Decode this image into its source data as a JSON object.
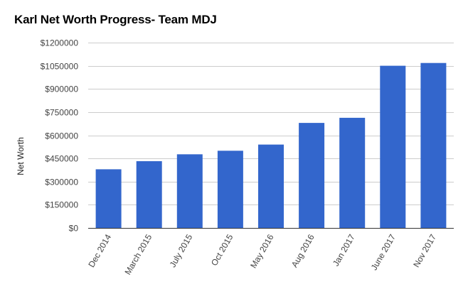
{
  "chart_data": {
    "type": "bar",
    "title": "Karl Net Worth Progress- Team MDJ",
    "xlabel": "",
    "ylabel": "Net Worth",
    "categories": [
      "Dec 2014",
      "March 2015",
      "July 2015",
      "Oct 2015",
      "May 2016",
      "Aug 2016",
      "Jan 2017",
      "June 2017",
      "Nov 2017"
    ],
    "values": [
      380000,
      432000,
      477000,
      500000,
      540000,
      680000,
      713000,
      1050000,
      1068000
    ],
    "ylim": [
      0,
      1200000
    ],
    "yticks": [
      0,
      150000,
      300000,
      450000,
      600000,
      750000,
      900000,
      1050000,
      1200000
    ],
    "ytick_labels": [
      "$0",
      "$150000",
      "$300000",
      "$450000",
      "$600000",
      "$750000",
      "$900000",
      "$1050000",
      "$1200000"
    ],
    "bar_color": "#3366cc",
    "grid": true,
    "legend": "none"
  }
}
